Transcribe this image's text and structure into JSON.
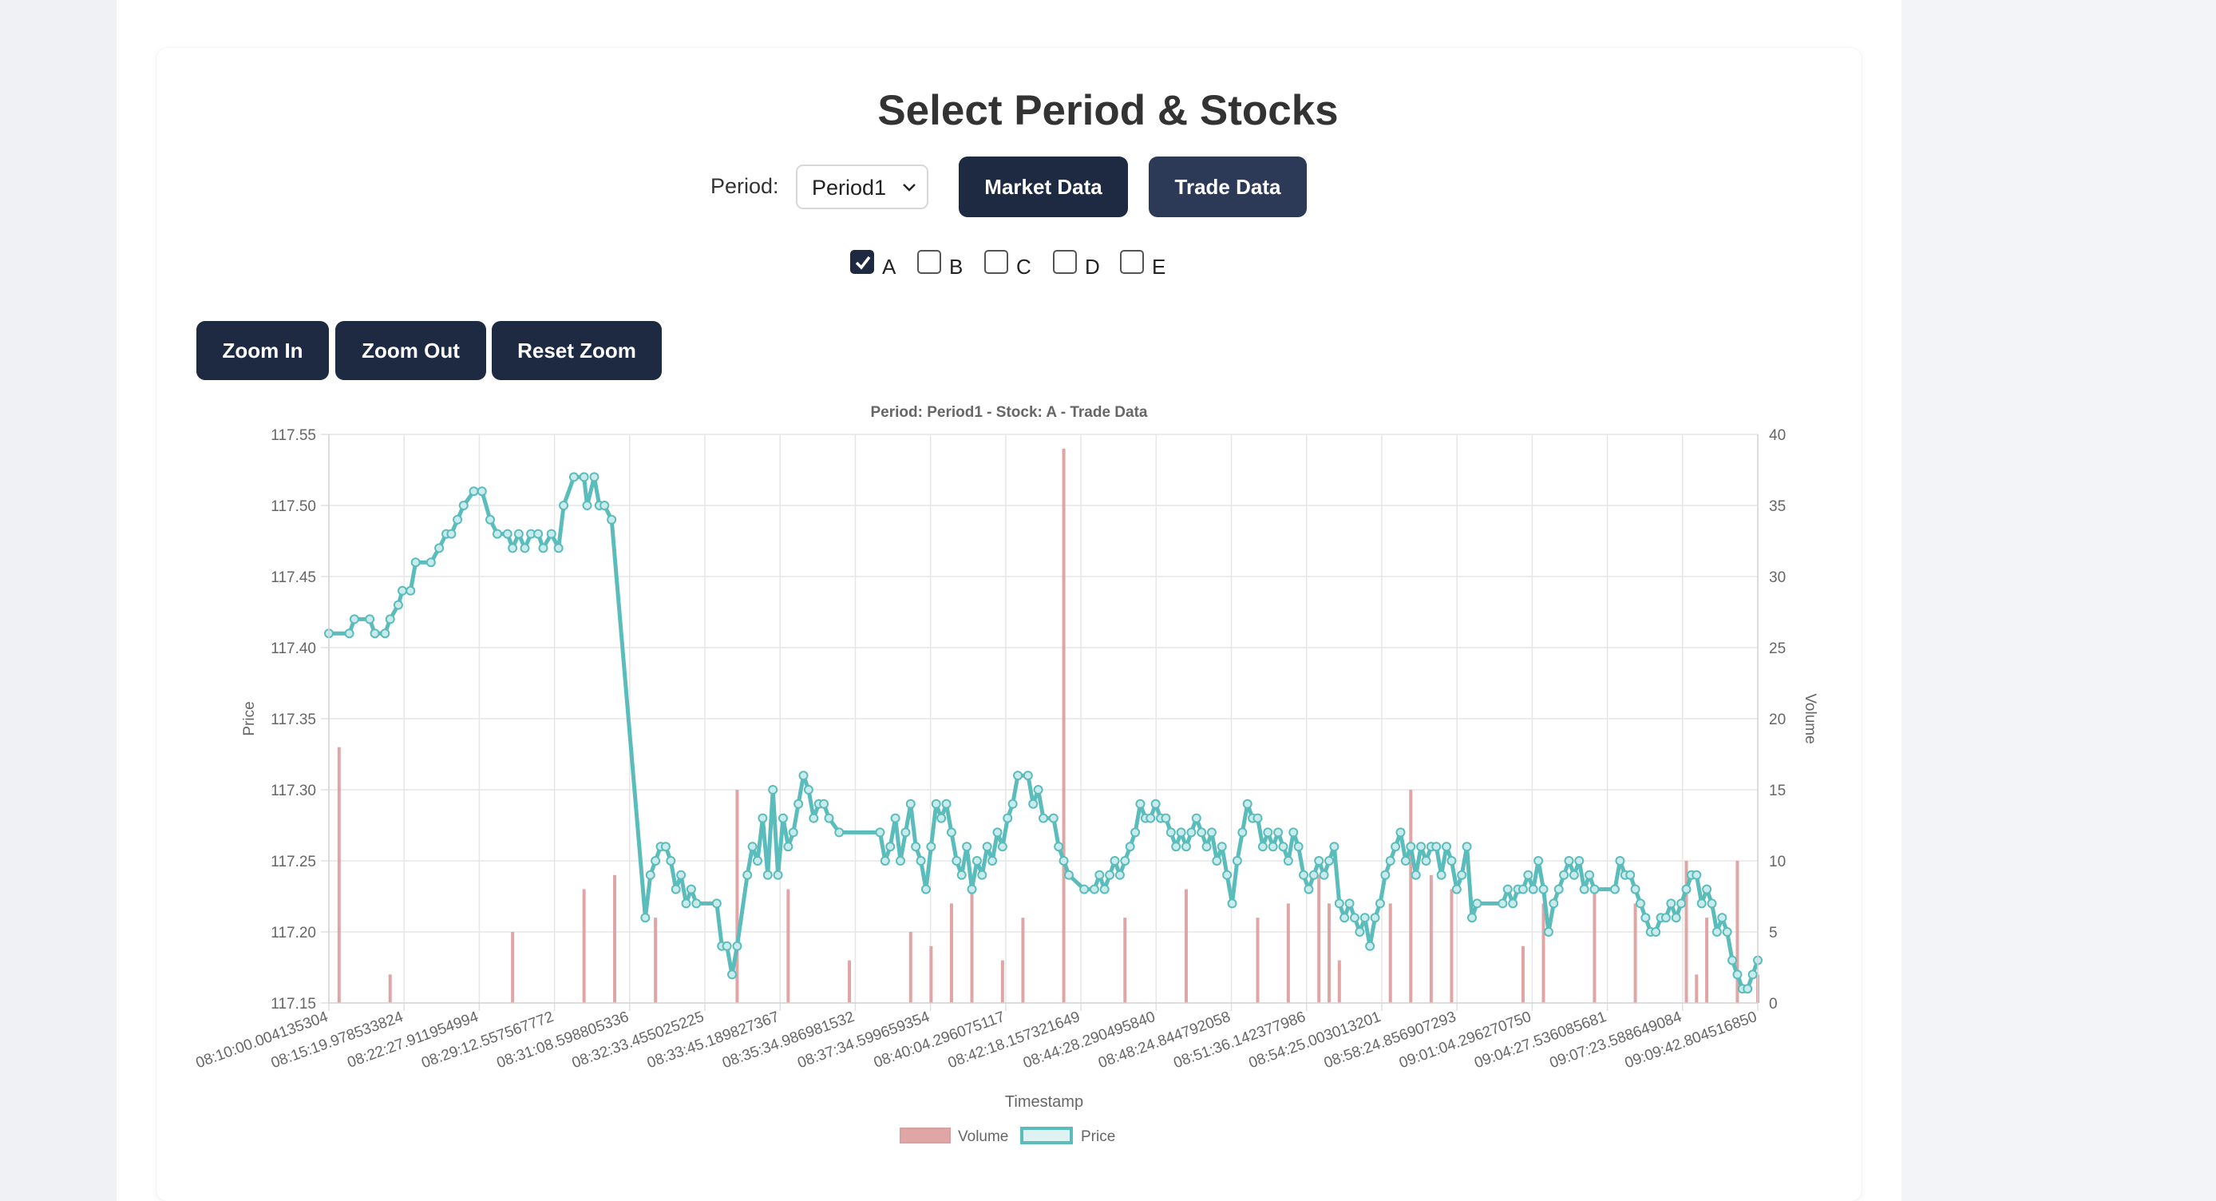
{
  "page": {
    "title": "Select Period & Stocks"
  },
  "controls": {
    "period_label": "Period:",
    "period_value": "Period1",
    "market_button": "Market Data",
    "trade_button": "Trade Data"
  },
  "stocks": [
    {
      "label": "A",
      "checked": true
    },
    {
      "label": "B",
      "checked": false
    },
    {
      "label": "C",
      "checked": false
    },
    {
      "label": "D",
      "checked": false
    },
    {
      "label": "E",
      "checked": false
    }
  ],
  "zoom": {
    "zoom_in": "Zoom In",
    "zoom_out": "Zoom Out",
    "reset": "Reset Zoom"
  },
  "colors": {
    "accent_dark": "#1e2a42",
    "price_line": "#5bbcbc",
    "volume_bar": "#e0a5a5"
  },
  "chart_data": {
    "type": "bar+line",
    "title": "Period: Period1 - Stock: A - Trade Data",
    "xlabel": "Timestamp",
    "ylabel_left": "Price",
    "ylabel_right": "Volume",
    "ylim_left": [
      117.15,
      117.55
    ],
    "ylim_right": [
      0,
      40
    ],
    "left_ticks": [
      "117.55",
      "117.50",
      "117.45",
      "117.40",
      "117.35",
      "117.30",
      "117.25",
      "117.20",
      "117.15"
    ],
    "right_ticks": [
      "40",
      "35",
      "30",
      "25",
      "20",
      "15",
      "10",
      "5",
      "0"
    ],
    "x_tick_labels": [
      "08:10:00.004135304",
      "08:15:19.978533824",
      "08:22:27.911954994",
      "08:29:12.557567772",
      "08:31:08.598805336",
      "08:32:33.455025225",
      "08:33:45.189827367",
      "08:35:34.986981532",
      "08:37:34.599659354",
      "08:40:04.296075117",
      "08:42:18.157321649",
      "08:44:28.290495840",
      "08:48:24.844792058",
      "08:51:36.142377986",
      "08:54:25.003013201",
      "08:58:24.856907293",
      "09:01:04.296270750",
      "09:04:27.536085681",
      "09:07:23.588649084",
      "09:09:42.804516850"
    ],
    "legend": [
      "Volume",
      "Price"
    ],
    "legend_position": "bottom",
    "grid": true,
    "price_series": {
      "name": "Price",
      "points": [
        [
          0,
          117.41
        ],
        [
          2,
          117.41
        ],
        [
          2.5,
          117.42
        ],
        [
          4,
          117.42
        ],
        [
          4.5,
          117.41
        ],
        [
          5.5,
          117.41
        ],
        [
          6,
          117.42
        ],
        [
          6.8,
          117.43
        ],
        [
          7.2,
          117.44
        ],
        [
          8,
          117.44
        ],
        [
          8.5,
          117.46
        ],
        [
          10,
          117.46
        ],
        [
          10.8,
          117.47
        ],
        [
          11.5,
          117.48
        ],
        [
          12,
          117.48
        ],
        [
          12.6,
          117.49
        ],
        [
          13.2,
          117.5
        ],
        [
          14.2,
          117.51
        ],
        [
          15,
          117.51
        ],
        [
          15.8,
          117.49
        ],
        [
          16.5,
          117.48
        ],
        [
          17.5,
          117.48
        ],
        [
          18,
          117.47
        ],
        [
          18.6,
          117.48
        ],
        [
          19.2,
          117.47
        ],
        [
          19.8,
          117.48
        ],
        [
          20.5,
          117.48
        ],
        [
          21,
          117.47
        ],
        [
          21.8,
          117.48
        ],
        [
          22.5,
          117.47
        ],
        [
          23,
          117.5
        ],
        [
          24,
          117.52
        ],
        [
          25,
          117.52
        ],
        [
          25.3,
          117.5
        ],
        [
          26,
          117.52
        ],
        [
          26.5,
          117.5
        ],
        [
          27,
          117.5
        ],
        [
          27.7,
          117.49
        ],
        [
          31,
          117.21
        ],
        [
          31.5,
          117.24
        ],
        [
          32,
          117.25
        ],
        [
          32.5,
          117.26
        ],
        [
          33,
          117.26
        ],
        [
          33.5,
          117.25
        ],
        [
          34,
          117.23
        ],
        [
          34.5,
          117.24
        ],
        [
          35,
          117.22
        ],
        [
          35.5,
          117.23
        ],
        [
          36,
          117.22
        ],
        [
          38,
          117.22
        ],
        [
          38.5,
          117.19
        ],
        [
          39,
          117.19
        ],
        [
          39.5,
          117.17
        ],
        [
          40,
          117.19
        ],
        [
          41,
          117.24
        ],
        [
          41.5,
          117.26
        ],
        [
          42,
          117.25
        ],
        [
          42.5,
          117.28
        ],
        [
          43,
          117.24
        ],
        [
          43.5,
          117.3
        ],
        [
          44,
          117.24
        ],
        [
          44.5,
          117.28
        ],
        [
          45,
          117.26
        ],
        [
          45.5,
          117.27
        ],
        [
          46,
          117.29
        ],
        [
          46.5,
          117.31
        ],
        [
          47,
          117.3
        ],
        [
          47.5,
          117.28
        ],
        [
          48,
          117.29
        ],
        [
          48.5,
          117.29
        ],
        [
          49,
          117.28
        ],
        [
          50,
          117.27
        ],
        [
          54,
          117.27
        ],
        [
          54.5,
          117.25
        ],
        [
          55,
          117.26
        ],
        [
          55.5,
          117.28
        ],
        [
          56,
          117.25
        ],
        [
          56.5,
          117.27
        ],
        [
          57,
          117.29
        ],
        [
          57.5,
          117.26
        ],
        [
          58,
          117.25
        ],
        [
          58.5,
          117.23
        ],
        [
          59,
          117.26
        ],
        [
          59.5,
          117.29
        ],
        [
          60,
          117.28
        ],
        [
          60.5,
          117.29
        ],
        [
          61,
          117.27
        ],
        [
          61.5,
          117.25
        ],
        [
          62,
          117.24
        ],
        [
          62.5,
          117.26
        ],
        [
          63,
          117.23
        ],
        [
          63.5,
          117.25
        ],
        [
          64,
          117.24
        ],
        [
          64.5,
          117.26
        ],
        [
          65,
          117.25
        ],
        [
          65.5,
          117.27
        ],
        [
          66,
          117.26
        ],
        [
          66.5,
          117.28
        ],
        [
          67,
          117.29
        ],
        [
          67.5,
          117.31
        ],
        [
          68.5,
          117.31
        ],
        [
          69,
          117.29
        ],
        [
          69.5,
          117.3
        ],
        [
          70,
          117.28
        ],
        [
          71,
          117.28
        ],
        [
          71.5,
          117.26
        ],
        [
          72,
          117.25
        ],
        [
          72.5,
          117.24
        ],
        [
          74,
          117.23
        ],
        [
          75,
          117.23
        ],
        [
          75.5,
          117.24
        ],
        [
          76,
          117.23
        ],
        [
          76.5,
          117.24
        ],
        [
          77,
          117.25
        ],
        [
          77.5,
          117.24
        ],
        [
          78,
          117.25
        ],
        [
          78.5,
          117.26
        ],
        [
          79,
          117.27
        ],
        [
          79.5,
          117.29
        ],
        [
          80,
          117.28
        ],
        [
          80.5,
          117.28
        ],
        [
          81,
          117.29
        ],
        [
          81.5,
          117.28
        ],
        [
          82,
          117.28
        ],
        [
          82.5,
          117.27
        ],
        [
          83,
          117.26
        ],
        [
          83.5,
          117.27
        ],
        [
          84,
          117.26
        ],
        [
          84.5,
          117.27
        ],
        [
          85,
          117.28
        ],
        [
          85.5,
          117.27
        ],
        [
          86,
          117.26
        ],
        [
          86.5,
          117.27
        ],
        [
          87,
          117.25
        ],
        [
          87.5,
          117.26
        ],
        [
          88,
          117.24
        ],
        [
          88.5,
          117.22
        ],
        [
          89,
          117.25
        ],
        [
          89.5,
          117.27
        ],
        [
          90,
          117.29
        ],
        [
          90.5,
          117.28
        ],
        [
          91,
          117.28
        ],
        [
          91.5,
          117.26
        ],
        [
          92,
          117.27
        ],
        [
          92.5,
          117.26
        ],
        [
          93,
          117.27
        ],
        [
          93.5,
          117.26
        ],
        [
          94,
          117.25
        ],
        [
          94.5,
          117.27
        ],
        [
          95,
          117.26
        ],
        [
          95.5,
          117.24
        ],
        [
          96,
          117.23
        ],
        [
          96.5,
          117.24
        ],
        [
          97,
          117.25
        ],
        [
          97.5,
          117.24
        ],
        [
          98,
          117.25
        ],
        [
          98.5,
          117.26
        ],
        [
          99,
          117.22
        ],
        [
          99.5,
          117.21
        ],
        [
          100,
          117.22
        ],
        [
          100.5,
          117.21
        ],
        [
          101,
          117.2
        ],
        [
          101.5,
          117.21
        ],
        [
          102,
          117.19
        ],
        [
          102.5,
          117.21
        ],
        [
          103,
          117.22
        ],
        [
          103.5,
          117.24
        ],
        [
          104,
          117.25
        ],
        [
          104.5,
          117.26
        ],
        [
          105,
          117.27
        ],
        [
          105.5,
          117.25
        ],
        [
          106,
          117.26
        ],
        [
          106.5,
          117.24
        ],
        [
          107,
          117.26
        ],
        [
          107.5,
          117.25
        ],
        [
          108,
          117.26
        ],
        [
          108.5,
          117.26
        ],
        [
          109,
          117.24
        ],
        [
          109.5,
          117.26
        ],
        [
          110,
          117.25
        ],
        [
          110.5,
          117.23
        ],
        [
          111,
          117.24
        ],
        [
          111.5,
          117.26
        ],
        [
          112,
          117.21
        ],
        [
          112.5,
          117.22
        ],
        [
          115,
          117.22
        ],
        [
          115.5,
          117.23
        ],
        [
          116,
          117.22
        ],
        [
          116.5,
          117.23
        ],
        [
          117,
          117.23
        ],
        [
          117.5,
          117.24
        ],
        [
          118,
          117.23
        ],
        [
          118.5,
          117.25
        ],
        [
          119,
          117.23
        ],
        [
          119.5,
          117.2
        ],
        [
          120,
          117.22
        ],
        [
          120.5,
          117.23
        ],
        [
          121,
          117.24
        ],
        [
          121.5,
          117.25
        ],
        [
          122,
          117.24
        ],
        [
          122.5,
          117.25
        ],
        [
          123,
          117.23
        ],
        [
          123.5,
          117.24
        ],
        [
          124,
          117.23
        ],
        [
          126,
          117.23
        ],
        [
          126.5,
          117.25
        ],
        [
          127,
          117.24
        ],
        [
          127.5,
          117.24
        ],
        [
          128,
          117.23
        ],
        [
          128.5,
          117.22
        ],
        [
          129,
          117.21
        ],
        [
          129.5,
          117.2
        ],
        [
          130,
          117.2
        ],
        [
          130.5,
          117.21
        ],
        [
          131,
          117.21
        ],
        [
          131.5,
          117.22
        ],
        [
          132,
          117.21
        ],
        [
          132.5,
          117.22
        ],
        [
          133,
          117.23
        ],
        [
          133.5,
          117.24
        ],
        [
          134,
          117.24
        ],
        [
          134.5,
          117.22
        ],
        [
          135,
          117.23
        ],
        [
          135.5,
          117.22
        ],
        [
          136,
          117.2
        ],
        [
          136.5,
          117.21
        ],
        [
          137,
          117.2
        ],
        [
          137.5,
          117.18
        ],
        [
          138,
          117.17
        ],
        [
          138.5,
          117.16
        ],
        [
          139,
          117.16
        ],
        [
          139.5,
          117.17
        ],
        [
          140,
          117.18
        ]
      ]
    },
    "volume_series": {
      "name": "Volume",
      "points": [
        [
          1,
          18
        ],
        [
          6,
          2
        ],
        [
          18,
          5
        ],
        [
          25,
          8
        ],
        [
          28,
          9
        ],
        [
          32,
          6
        ],
        [
          40,
          15
        ],
        [
          45,
          8
        ],
        [
          51,
          3
        ],
        [
          57,
          5
        ],
        [
          59,
          4
        ],
        [
          61,
          7
        ],
        [
          63,
          8
        ],
        [
          66,
          3
        ],
        [
          68,
          6
        ],
        [
          72,
          39
        ],
        [
          78,
          6
        ],
        [
          84,
          8
        ],
        [
          91,
          6
        ],
        [
          94,
          7
        ],
        [
          97,
          9
        ],
        [
          98,
          7
        ],
        [
          99,
          3
        ],
        [
          104,
          7
        ],
        [
          106,
          15
        ],
        [
          108,
          9
        ],
        [
          110,
          8
        ],
        [
          117,
          4
        ],
        [
          119,
          7
        ],
        [
          124,
          8
        ],
        [
          128,
          7
        ],
        [
          133,
          10
        ],
        [
          134,
          2
        ],
        [
          135,
          6
        ],
        [
          138,
          10
        ],
        [
          140,
          2
        ]
      ]
    }
  }
}
